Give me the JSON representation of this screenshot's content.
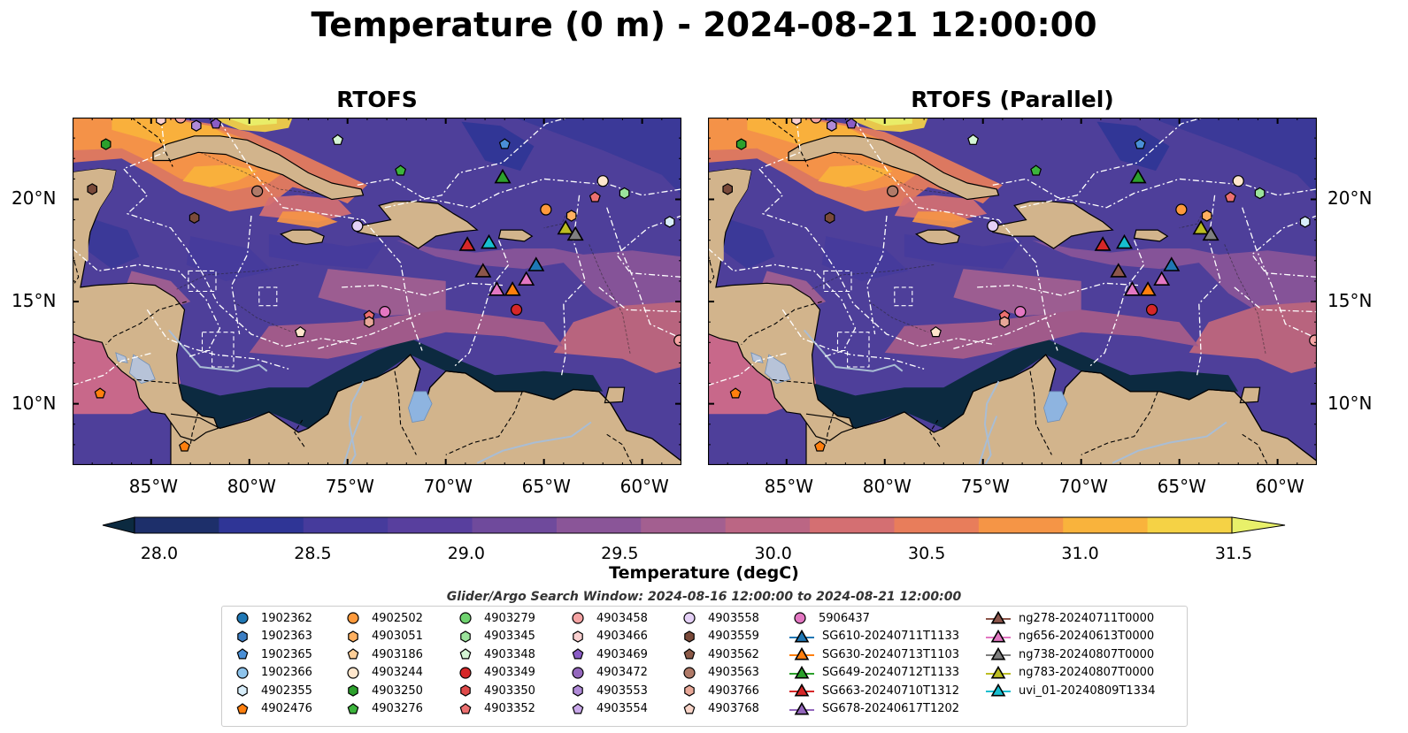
{
  "title": "Temperature (0 m) - 2024-08-21 12:00:00",
  "panels": [
    {
      "title": "RTOFS"
    },
    {
      "title": "RTOFS (Parallel)"
    }
  ],
  "map": {
    "lon_range": [
      -89,
      -58
    ],
    "lat_range": [
      7,
      24
    ],
    "lon_ticks": [
      {
        "value": -85,
        "label": "85°W"
      },
      {
        "value": -80,
        "label": "80°W"
      },
      {
        "value": -75,
        "label": "75°W"
      },
      {
        "value": -70,
        "label": "70°W"
      },
      {
        "value": -65,
        "label": "65°W"
      },
      {
        "value": -60,
        "label": "60°W"
      }
    ],
    "lat_ticks": [
      {
        "value": 20,
        "label": "20°N"
      },
      {
        "value": 15,
        "label": "15°N"
      },
      {
        "value": 10,
        "label": "10°N"
      }
    ],
    "land_color": "#d2b48c",
    "ocean_base_color": "#4e3f9a"
  },
  "colorbar": {
    "label": "Temperature (degC)",
    "range": [
      28.0,
      31.5
    ],
    "ticks": [
      "28.0",
      "28.5",
      "29.0",
      "29.5",
      "30.0",
      "30.5",
      "31.0",
      "31.5"
    ],
    "colors": [
      "#0c2a40",
      "#1d2f6a",
      "#2f3596",
      "#463b9c",
      "#583f9e",
      "#6f4a9c",
      "#8a5598",
      "#a35f90",
      "#bb6684",
      "#d46f72",
      "#e87d5b",
      "#f59546",
      "#f9b33c",
      "#f5d245",
      "#e8f06a"
    ]
  },
  "search_window": "Glider/Argo Search Window: 2024-08-16 12:00:00 to 2024-08-21 12:00:00",
  "legend": [
    {
      "label": "1902362",
      "marker": "circle",
      "color": "#1f77b4"
    },
    {
      "label": "1902363",
      "marker": "hexagon",
      "color": "#3d7fc4"
    },
    {
      "label": "1902365",
      "marker": "pentagon",
      "color": "#4a8fd6"
    },
    {
      "label": "1902366",
      "marker": "circle",
      "color": "#8ec4ec"
    },
    {
      "label": "4902355",
      "marker": "hexagon",
      "color": "#d8eefa"
    },
    {
      "label": "4902476",
      "marker": "pentagon",
      "color": "#ff7f0e"
    },
    {
      "label": "4902502",
      "marker": "circle",
      "color": "#ff9a3c"
    },
    {
      "label": "4903051",
      "marker": "hexagon",
      "color": "#ffb060"
    },
    {
      "label": "4903186",
      "marker": "pentagon",
      "color": "#ffcf98"
    },
    {
      "label": "4903244",
      "marker": "circle",
      "color": "#ffe6cc"
    },
    {
      "label": "4903250",
      "marker": "hexagon",
      "color": "#2ca02c"
    },
    {
      "label": "4903276",
      "marker": "pentagon",
      "color": "#3cb43c"
    },
    {
      "label": "4903279",
      "marker": "circle",
      "color": "#6fd36f"
    },
    {
      "label": "4903345",
      "marker": "hexagon",
      "color": "#9be39b"
    },
    {
      "label": "4903348",
      "marker": "pentagon",
      "color": "#d4f5d4"
    },
    {
      "label": "4903349",
      "marker": "circle",
      "color": "#d62728"
    },
    {
      "label": "4903350",
      "marker": "hexagon",
      "color": "#e04a4a"
    },
    {
      "label": "4903352",
      "marker": "pentagon",
      "color": "#ec7070"
    },
    {
      "label": "4903458",
      "marker": "circle",
      "color": "#f4a3a3"
    },
    {
      "label": "4903466",
      "marker": "hexagon",
      "color": "#fad0d0"
    },
    {
      "label": "4903469",
      "marker": "pentagon",
      "color": "#8a5cc6"
    },
    {
      "label": "4903472",
      "marker": "circle",
      "color": "#9467bd"
    },
    {
      "label": "4903553",
      "marker": "hexagon",
      "color": "#b08ad8"
    },
    {
      "label": "4903554",
      "marker": "pentagon",
      "color": "#c9a8ea"
    },
    {
      "label": "4903558",
      "marker": "circle",
      "color": "#e4d0f6"
    },
    {
      "label": "4903559",
      "marker": "hexagon",
      "color": "#7a4a3a"
    },
    {
      "label": "4903562",
      "marker": "pentagon",
      "color": "#8c5a48"
    },
    {
      "label": "4903563",
      "marker": "circle",
      "color": "#b07a68"
    },
    {
      "label": "4903766",
      "marker": "hexagon",
      "color": "#e8a898"
    },
    {
      "label": "4903768",
      "marker": "pentagon",
      "color": "#f8d4c8"
    },
    {
      "label": "5906437",
      "marker": "circle",
      "color": "#e377c2"
    },
    {
      "label": "SG610-20240711T1133",
      "marker": "triangle-line",
      "color": "#1f77b4"
    },
    {
      "label": "SG630-20240713T1103",
      "marker": "triangle-line",
      "color": "#ff7f0e"
    },
    {
      "label": "SG649-20240712T1133",
      "marker": "triangle-line",
      "color": "#2ca02c"
    },
    {
      "label": "SG663-20240710T1312",
      "marker": "triangle-line",
      "color": "#d62728"
    },
    {
      "label": "SG678-20240617T1202",
      "marker": "triangle-line",
      "color": "#9467bd"
    },
    {
      "label": "ng278-20240711T0000",
      "marker": "triangle-line",
      "color": "#8c564b"
    },
    {
      "label": "ng656-20240613T0000",
      "marker": "triangle-line",
      "color": "#e377c2"
    },
    {
      "label": "ng738-20240807T0000",
      "marker": "triangle-line",
      "color": "#7f7f7f"
    },
    {
      "label": "ng783-20240807T0000",
      "marker": "triangle-line",
      "color": "#bcbd22"
    },
    {
      "label": "uvi_01-20240809T1334",
      "marker": "triangle-line",
      "color": "#17becf"
    }
  ],
  "observations": [
    {
      "lon": -85.0,
      "lat": 24.3,
      "marker": "circle",
      "color": "#e4d0f6"
    },
    {
      "lon": -84.5,
      "lat": 23.9,
      "marker": "hexagon",
      "color": "#fad0d0"
    },
    {
      "lon": -83.5,
      "lat": 24.0,
      "marker": "circle",
      "color": "#f4a3a3"
    },
    {
      "lon": -82.7,
      "lat": 23.6,
      "marker": "hexagon",
      "color": "#b08ad8"
    },
    {
      "lon": -81.7,
      "lat": 23.7,
      "marker": "pentagon",
      "color": "#8a5cc6"
    },
    {
      "lon": -87.3,
      "lat": 22.7,
      "marker": "hexagon",
      "color": "#2ca02c"
    },
    {
      "lon": -88.0,
      "lat": 20.5,
      "marker": "hexagon",
      "color": "#7a4a3a"
    },
    {
      "lon": -82.8,
      "lat": 19.1,
      "marker": "hexagon",
      "color": "#7a4a3a"
    },
    {
      "lon": -79.6,
      "lat": 20.4,
      "marker": "circle",
      "color": "#b07a68"
    },
    {
      "lon": -75.5,
      "lat": 22.9,
      "marker": "pentagon",
      "color": "#d4f5d4"
    },
    {
      "lon": -74.5,
      "lat": 18.7,
      "marker": "circle",
      "color": "#e4d0f6"
    },
    {
      "lon": -72.3,
      "lat": 21.4,
      "marker": "pentagon",
      "color": "#3cb43c"
    },
    {
      "lon": -67.0,
      "lat": 22.7,
      "marker": "pentagon",
      "color": "#4a8fd6"
    },
    {
      "lon": -64.9,
      "lat": 24.3,
      "marker": "circle",
      "color": "#8ec4ec"
    },
    {
      "lon": -64.9,
      "lat": 19.5,
      "marker": "circle",
      "color": "#ff9a3c"
    },
    {
      "lon": -63.6,
      "lat": 19.2,
      "marker": "hexagon",
      "color": "#ffb060"
    },
    {
      "lon": -62.0,
      "lat": 20.9,
      "marker": "circle",
      "color": "#ffe6cc"
    },
    {
      "lon": -62.4,
      "lat": 20.1,
      "marker": "pentagon",
      "color": "#ec7070"
    },
    {
      "lon": -60.9,
      "lat": 20.3,
      "marker": "hexagon",
      "color": "#9be39b"
    },
    {
      "lon": -58.6,
      "lat": 18.9,
      "marker": "hexagon",
      "color": "#d8eefa"
    },
    {
      "lon": -73.9,
      "lat": 14.3,
      "marker": "pentagon",
      "color": "#ec7070"
    },
    {
      "lon": -73.9,
      "lat": 14.0,
      "marker": "hexagon",
      "color": "#e8a898"
    },
    {
      "lon": -73.1,
      "lat": 14.5,
      "marker": "circle",
      "color": "#e377c2"
    },
    {
      "lon": -77.4,
      "lat": 13.5,
      "marker": "pentagon",
      "color": "#ffe6cc"
    },
    {
      "lon": -66.4,
      "lat": 14.6,
      "marker": "circle",
      "color": "#d62728"
    },
    {
      "lon": -58.1,
      "lat": 13.1,
      "marker": "circle",
      "color": "#f4a3a3"
    },
    {
      "lon": -87.6,
      "lat": 10.5,
      "marker": "pentagon",
      "color": "#ff7f0e"
    },
    {
      "lon": -83.3,
      "lat": 7.9,
      "marker": "pentagon",
      "color": "#ff7f0e"
    },
    {
      "lon": -68.9,
      "lat": 17.8,
      "marker": "triangle",
      "color": "#d62728"
    },
    {
      "lon": -67.8,
      "lat": 17.9,
      "marker": "triangle",
      "color": "#17becf"
    },
    {
      "lon": -67.1,
      "lat": 21.1,
      "marker": "triangle",
      "color": "#2ca02c"
    },
    {
      "lon": -68.1,
      "lat": 16.5,
      "marker": "triangle",
      "color": "#8c564b"
    },
    {
      "lon": -67.4,
      "lat": 15.6,
      "marker": "triangle",
      "color": "#e377c2"
    },
    {
      "lon": -66.6,
      "lat": 15.6,
      "marker": "triangle",
      "color": "#ff7f0e"
    },
    {
      "lon": -65.9,
      "lat": 16.1,
      "marker": "triangle",
      "color": "#e377c2"
    },
    {
      "lon": -65.4,
      "lat": 16.8,
      "marker": "triangle",
      "color": "#1f77b4"
    },
    {
      "lon": -63.9,
      "lat": 18.6,
      "marker": "triangle",
      "color": "#bcbd22"
    },
    {
      "lon": -63.4,
      "lat": 18.3,
      "marker": "triangle",
      "color": "#7f7f7f"
    }
  ]
}
